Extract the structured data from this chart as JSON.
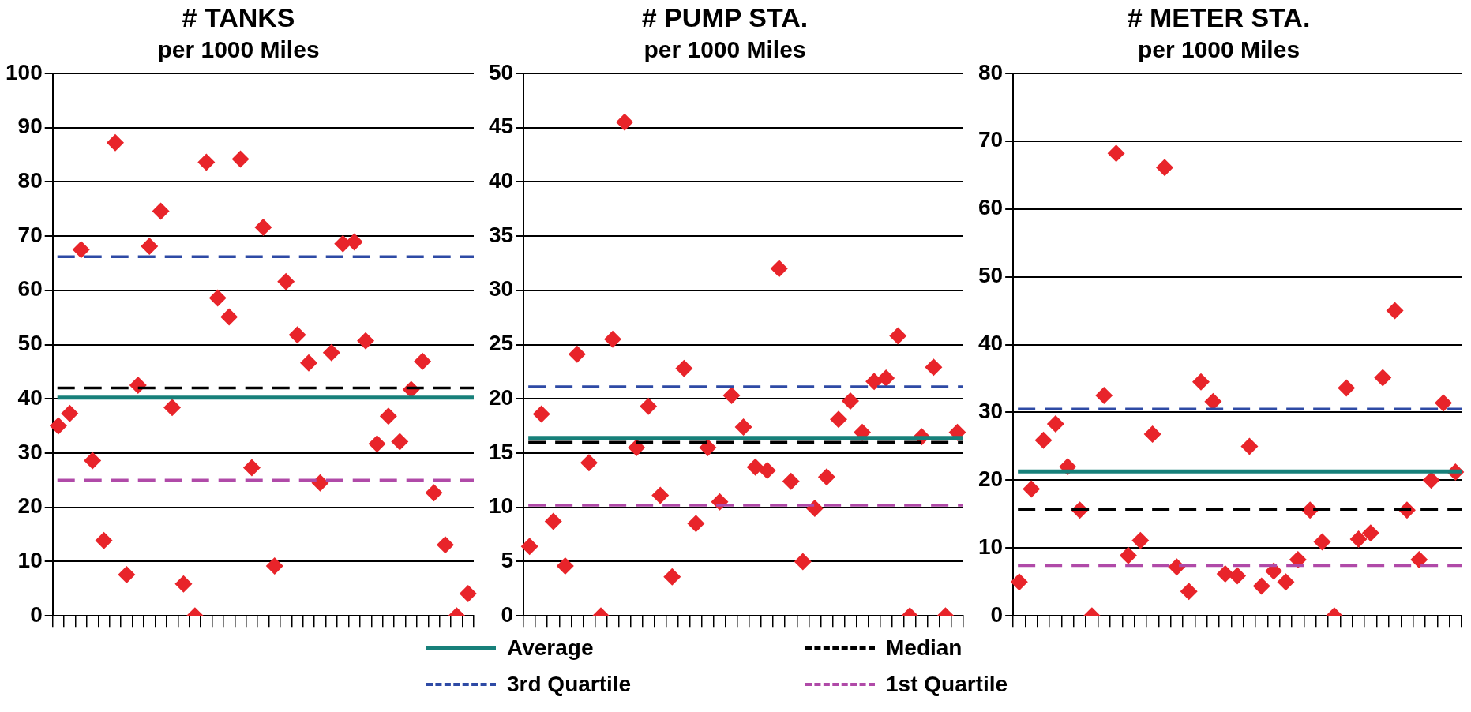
{
  "chart_data": [
    {
      "type": "scatter",
      "title": "# TANKS",
      "subtitle": "per 1000 Miles",
      "categories": [
        null,
        null,
        null,
        null,
        null,
        null,
        null,
        null,
        null,
        null,
        null,
        null,
        null,
        null,
        null,
        null,
        null,
        null,
        null,
        null,
        null,
        null,
        null,
        null,
        null,
        null,
        null,
        null,
        null,
        null,
        null,
        null,
        null,
        null,
        null,
        null,
        null
      ],
      "values": [
        35,
        37.3,
        67.5,
        28.6,
        13.9,
        87.2,
        7.6,
        42.5,
        68.1,
        74.6,
        38.4,
        5.9,
        0,
        83.6,
        58.6,
        55.1,
        84.2,
        27.3,
        71.6,
        9.2,
        61.6,
        51.8,
        46.6,
        24.5,
        48.5,
        68.6,
        68.9,
        50.7,
        31.7,
        36.8,
        32.1,
        41.7,
        46.9,
        22.7,
        13.1,
        0,
        4.1
      ],
      "color": "#e8242a",
      "marker": "diamond",
      "ylim": [
        0,
        100
      ],
      "yticks": [
        0,
        10,
        20,
        30,
        40,
        50,
        60,
        70,
        80,
        90,
        100
      ],
      "grid": "y",
      "ref_lines": [
        {
          "axis": "y",
          "value": 40.2,
          "color": "#17807a",
          "line_style": "solid"
        },
        {
          "axis": "y",
          "value": 42,
          "color": "#000000",
          "line_style": "dashed"
        },
        {
          "axis": "y",
          "value": 66.2,
          "color": "#2e4aa5",
          "line_style": "dashed"
        },
        {
          "axis": "y",
          "value": 25,
          "color": "#b04aa8",
          "line_style": "dashed"
        }
      ]
    },
    {
      "type": "scatter",
      "title": "# PUMP STA.",
      "subtitle": "per 1000 Miles",
      "categories": [
        null,
        null,
        null,
        null,
        null,
        null,
        null,
        null,
        null,
        null,
        null,
        null,
        null,
        null,
        null,
        null,
        null,
        null,
        null,
        null,
        null,
        null,
        null,
        null,
        null,
        null,
        null,
        null,
        null,
        null,
        null,
        null,
        null,
        null,
        null,
        null,
        null
      ],
      "values": [
        6.4,
        18.6,
        8.7,
        4.6,
        24.1,
        14.1,
        0,
        25.5,
        45.5,
        15.5,
        19.3,
        11.1,
        3.6,
        22.8,
        8.5,
        15.5,
        10.5,
        20.3,
        17.4,
        13.7,
        13.4,
        32,
        12.4,
        5,
        9.9,
        12.8,
        18.1,
        19.8,
        16.9,
        21.6,
        21.9,
        25.8,
        0,
        16.5,
        22.9,
        0,
        16.9
      ],
      "color": "#e8242a",
      "marker": "diamond",
      "ylim": [
        0,
        50
      ],
      "yticks": [
        0,
        5,
        10,
        15,
        20,
        25,
        30,
        35,
        40,
        45,
        50
      ],
      "grid": "y",
      "legend": "bottom",
      "ref_lines": [
        {
          "axis": "y",
          "value": 16.4,
          "label": "Average",
          "color": "#17807a",
          "line_style": "solid"
        },
        {
          "axis": "y",
          "value": 16,
          "label": "Median",
          "color": "#000000",
          "line_style": "dashed"
        },
        {
          "axis": "y",
          "value": 21.1,
          "label": "3rd Quartile",
          "color": "#2e4aa5",
          "line_style": "dashed"
        },
        {
          "axis": "y",
          "value": 10.2,
          "label": "1st Quartile",
          "color": "#b04aa8",
          "line_style": "dashed"
        }
      ]
    },
    {
      "type": "scatter",
      "title": "# METER STA.",
      "subtitle": "per 1000 Miles",
      "categories": [
        null,
        null,
        null,
        null,
        null,
        null,
        null,
        null,
        null,
        null,
        null,
        null,
        null,
        null,
        null,
        null,
        null,
        null,
        null,
        null,
        null,
        null,
        null,
        null,
        null,
        null,
        null,
        null,
        null,
        null,
        null,
        null,
        null,
        null,
        null,
        null,
        null
      ],
      "values": [
        5,
        18.7,
        25.9,
        28.3,
        22,
        15.6,
        0,
        32.5,
        68.2,
        8.9,
        11.1,
        26.8,
        66.1,
        7.2,
        3.6,
        34.5,
        31.6,
        6.2,
        5.9,
        25,
        4.4,
        6.6,
        5,
        8.3,
        15.6,
        10.9,
        0,
        33.6,
        11.3,
        12.2,
        35.1,
        45,
        15.6,
        8.3,
        20,
        31.4,
        21.2
      ],
      "color": "#e8242a",
      "marker": "diamond",
      "ylim": [
        0,
        80
      ],
      "yticks": [
        0,
        10,
        20,
        30,
        40,
        50,
        60,
        70,
        80
      ],
      "grid": "y",
      "ref_lines": [
        {
          "axis": "y",
          "value": 21.3,
          "color": "#17807a",
          "line_style": "solid"
        },
        {
          "axis": "y",
          "value": 15.7,
          "color": "#000000",
          "line_style": "dashed"
        },
        {
          "axis": "y",
          "value": 30.5,
          "color": "#2e4aa5",
          "line_style": "dashed"
        },
        {
          "axis": "y",
          "value": 7.4,
          "color": "#b04aa8",
          "line_style": "dashed"
        }
      ]
    }
  ]
}
